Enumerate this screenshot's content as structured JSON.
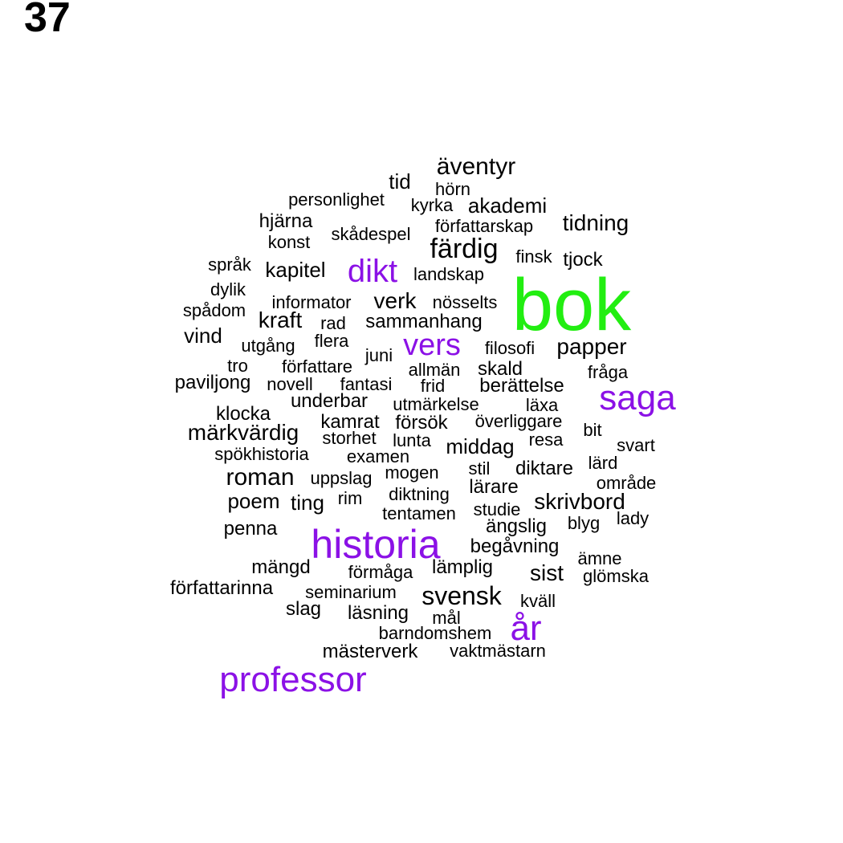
{
  "page_number": "37",
  "colors": {
    "large": "#22ee11",
    "medium": "#8b11e6",
    "small": "#000000"
  },
  "words": [
    {
      "text": "bok",
      "tier": "large"
    },
    {
      "text": "historia",
      "tier": "medium"
    },
    {
      "text": "saga",
      "tier": "medium"
    },
    {
      "text": "professor",
      "tier": "medium"
    },
    {
      "text": "år",
      "tier": "medium"
    },
    {
      "text": "dikt",
      "tier": "medium"
    },
    {
      "text": "vers",
      "tier": "medium"
    },
    {
      "text": "äventyr",
      "tier": "small"
    },
    {
      "text": "tid",
      "tier": "small"
    },
    {
      "text": "hörn",
      "tier": "small"
    },
    {
      "text": "personlighet",
      "tier": "small"
    },
    {
      "text": "kyrka",
      "tier": "small"
    },
    {
      "text": "akademi",
      "tier": "small"
    },
    {
      "text": "hjärna",
      "tier": "small"
    },
    {
      "text": "författarskap",
      "tier": "small"
    },
    {
      "text": "tidning",
      "tier": "small"
    },
    {
      "text": "skådespel",
      "tier": "small"
    },
    {
      "text": "konst",
      "tier": "small"
    },
    {
      "text": "färdig",
      "tier": "small"
    },
    {
      "text": "finsk",
      "tier": "small"
    },
    {
      "text": "tjock",
      "tier": "small"
    },
    {
      "text": "språk",
      "tier": "small"
    },
    {
      "text": "kapitel",
      "tier": "small"
    },
    {
      "text": "landskap",
      "tier": "small"
    },
    {
      "text": "dylik",
      "tier": "small"
    },
    {
      "text": "informator",
      "tier": "small"
    },
    {
      "text": "verk",
      "tier": "small"
    },
    {
      "text": "nösselts",
      "tier": "small"
    },
    {
      "text": "spådom",
      "tier": "small"
    },
    {
      "text": "kraft",
      "tier": "small"
    },
    {
      "text": "rad",
      "tier": "small"
    },
    {
      "text": "sammanhang",
      "tier": "small"
    },
    {
      "text": "vind",
      "tier": "small"
    },
    {
      "text": "flera",
      "tier": "small"
    },
    {
      "text": "utgång",
      "tier": "small"
    },
    {
      "text": "juni",
      "tier": "small"
    },
    {
      "text": "filosofi",
      "tier": "small"
    },
    {
      "text": "papper",
      "tier": "small"
    },
    {
      "text": "tro",
      "tier": "small"
    },
    {
      "text": "författare",
      "tier": "small"
    },
    {
      "text": "allmän",
      "tier": "small"
    },
    {
      "text": "skald",
      "tier": "small"
    },
    {
      "text": "fråga",
      "tier": "small"
    },
    {
      "text": "paviljong",
      "tier": "small"
    },
    {
      "text": "novell",
      "tier": "small"
    },
    {
      "text": "fantasi",
      "tier": "small"
    },
    {
      "text": "frid",
      "tier": "small"
    },
    {
      "text": "berättelse",
      "tier": "small"
    },
    {
      "text": "underbar",
      "tier": "small"
    },
    {
      "text": "utmärkelse",
      "tier": "small"
    },
    {
      "text": "läxa",
      "tier": "small"
    },
    {
      "text": "klocka",
      "tier": "small"
    },
    {
      "text": "kamrat",
      "tier": "small"
    },
    {
      "text": "försök",
      "tier": "small"
    },
    {
      "text": "överliggare",
      "tier": "small"
    },
    {
      "text": "bit",
      "tier": "small"
    },
    {
      "text": "märkvärdig",
      "tier": "small"
    },
    {
      "text": "storhet",
      "tier": "small"
    },
    {
      "text": "lunta",
      "tier": "small"
    },
    {
      "text": "resa",
      "tier": "small"
    },
    {
      "text": "middag",
      "tier": "small"
    },
    {
      "text": "svart",
      "tier": "small"
    },
    {
      "text": "spökhistoria",
      "tier": "small"
    },
    {
      "text": "examen",
      "tier": "small"
    },
    {
      "text": "lärd",
      "tier": "small"
    },
    {
      "text": "stil",
      "tier": "small"
    },
    {
      "text": "diktare",
      "tier": "small"
    },
    {
      "text": "roman",
      "tier": "small"
    },
    {
      "text": "uppslag",
      "tier": "small"
    },
    {
      "text": "mogen",
      "tier": "small"
    },
    {
      "text": "område",
      "tier": "small"
    },
    {
      "text": "lärare",
      "tier": "small"
    },
    {
      "text": "diktning",
      "tier": "small"
    },
    {
      "text": "poem",
      "tier": "small"
    },
    {
      "text": "ting",
      "tier": "small"
    },
    {
      "text": "rim",
      "tier": "small"
    },
    {
      "text": "skrivbord",
      "tier": "small"
    },
    {
      "text": "studie",
      "tier": "small"
    },
    {
      "text": "tentamen",
      "tier": "small"
    },
    {
      "text": "lady",
      "tier": "small"
    },
    {
      "text": "penna",
      "tier": "small"
    },
    {
      "text": "ängslig",
      "tier": "small"
    },
    {
      "text": "blyg",
      "tier": "small"
    },
    {
      "text": "begåvning",
      "tier": "small"
    },
    {
      "text": "ämne",
      "tier": "small"
    },
    {
      "text": "mängd",
      "tier": "small"
    },
    {
      "text": "lämplig",
      "tier": "small"
    },
    {
      "text": "förmåga",
      "tier": "small"
    },
    {
      "text": "sist",
      "tier": "small"
    },
    {
      "text": "glömska",
      "tier": "small"
    },
    {
      "text": "författarinna",
      "tier": "small"
    },
    {
      "text": "seminarium",
      "tier": "small"
    },
    {
      "text": "svensk",
      "tier": "small"
    },
    {
      "text": "kväll",
      "tier": "small"
    },
    {
      "text": "slag",
      "tier": "small"
    },
    {
      "text": "läsning",
      "tier": "small"
    },
    {
      "text": "mål",
      "tier": "small"
    },
    {
      "text": "barndomshem",
      "tier": "small"
    },
    {
      "text": "mästerverk",
      "tier": "small"
    },
    {
      "text": "vaktmästarn",
      "tier": "small"
    }
  ]
}
